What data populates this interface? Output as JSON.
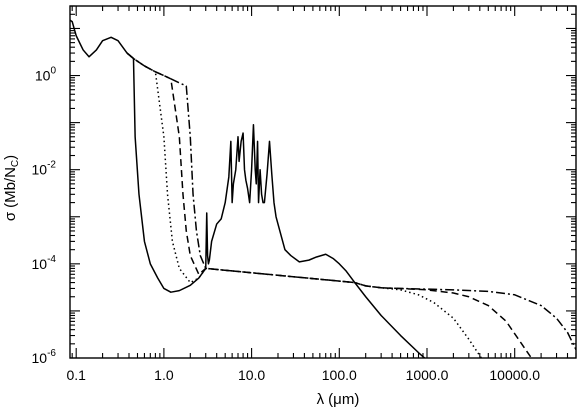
{
  "chart_data": {
    "type": "line",
    "xlabel": "λ (μm)",
    "ylabel": "σ (Mb/N_C)",
    "ylabel_parts": {
      "sigma": "σ",
      "open": "(Mb/N",
      "sub": "C",
      "close": ")"
    },
    "xlabel_parts": {
      "lambda": "λ",
      "open": "(",
      "mu": "μ",
      "unit": "m)"
    },
    "xscale": "log",
    "yscale": "log",
    "xlim": [
      0.085,
      50000
    ],
    "ylim": [
      1e-06,
      30
    ],
    "grid": false,
    "legend": "none",
    "x_tick_labels": [
      {
        "value": 0.1,
        "label": "0.1"
      },
      {
        "value": 1,
        "label": "1.0"
      },
      {
        "value": 10,
        "label": "10.0"
      },
      {
        "value": 100,
        "label": "100.0"
      },
      {
        "value": 1000,
        "label": "1000.0"
      },
      {
        "value": 10000,
        "label": "10000.0"
      }
    ],
    "y_tick_labels": [
      {
        "value": 1,
        "base": "10",
        "exp": "0"
      },
      {
        "value": 0.01,
        "base": "10",
        "exp": "-2"
      },
      {
        "value": 0.0001,
        "base": "10",
        "exp": "-4"
      },
      {
        "value": 1e-06,
        "base": "10",
        "exp": "-6"
      }
    ],
    "common_curve": {
      "x": [
        0.085,
        0.09,
        0.1,
        0.12,
        0.14,
        0.17,
        0.2,
        0.25,
        0.3,
        0.38
      ],
      "y": [
        15,
        14,
        7,
        3.5,
        2.5,
        3.5,
        5.5,
        6.5,
        5.5,
        3
      ]
    },
    "shared_bump": {
      "x": [
        0.38,
        0.45,
        0.6,
        0.8,
        1.0,
        1.2,
        1.5,
        1.8,
        2.0
      ],
      "y": [
        3,
        2.3,
        1.6,
        1.2,
        1.0,
        0.85,
        0.7,
        0.6,
        0.55
      ]
    },
    "series": [
      {
        "style": "solid",
        "cutoff_x": 0.45,
        "x": [
          0.47,
          0.52,
          0.6,
          0.7,
          0.85,
          1.0,
          1.2,
          1.5,
          2.0,
          2.5,
          3.0,
          3.08,
          3.15,
          3.22,
          3.3,
          3.5,
          4.0,
          4.5,
          5.0,
          5.5,
          5.8,
          6.0,
          6.2,
          6.6,
          7.0,
          7.2,
          7.6,
          8.0,
          8.3,
          8.6,
          9.0,
          9.5,
          10.0,
          10.5,
          11.0,
          11.3,
          11.7,
          12.0,
          12.5,
          13.0,
          13.5,
          14.0,
          15.0,
          16.0,
          17.0,
          18.0,
          19.0,
          21.0,
          24.0,
          28.0,
          35.0,
          45.0,
          55.0,
          70.0,
          85.0,
          100.0,
          120.0,
          150.0,
          200.0,
          300.0,
          500.0,
          800.0,
          1000.0,
          2000.0
        ],
        "y": [
          0.05,
          0.003,
          0.0003,
          0.0001,
          5e-05,
          3e-05,
          2.5e-05,
          2.7e-05,
          3.5e-05,
          5e-05,
          8e-05,
          0.0012,
          0.00015,
          0.0001,
          0.00012,
          0.0003,
          0.0007,
          0.0009,
          0.002,
          0.007,
          0.04,
          0.002,
          0.005,
          0.01,
          0.05,
          0.015,
          0.04,
          0.06,
          0.01,
          0.006,
          0.004,
          0.002,
          0.01,
          0.09,
          0.01,
          0.005,
          0.04,
          0.002,
          0.01,
          0.003,
          0.002,
          0.002,
          0.008,
          0.04,
          0.008,
          0.002,
          0.001,
          0.0005,
          0.0002,
          0.00015,
          0.00011,
          0.00012,
          0.00014,
          0.00016,
          0.00013,
          0.0001,
          7e-05,
          4e-05,
          2e-05,
          8e-06,
          3e-06,
          1.3e-06,
          9e-07,
          2e-07
        ]
      },
      {
        "style": "dotted",
        "cutoff_x": 0.95,
        "x": [
          1.0,
          1.1,
          1.25,
          1.5,
          2.0,
          2.5,
          3.0,
          150,
          200,
          300,
          500,
          800,
          1200,
          2000,
          3000,
          5000
        ],
        "y": [
          0.05,
          0.003,
          0.0003,
          8e-05,
          4e-05,
          5e-05,
          8e-05,
          4e-05,
          3.4e-05,
          3.1e-05,
          2.8e-05,
          2.2e-05,
          1.5e-05,
          7e-06,
          2.5e-06,
          6e-07
        ]
      },
      {
        "style": "dashed",
        "cutoff_x": 1.45,
        "x": [
          1.5,
          1.65,
          1.8,
          2.0,
          2.5,
          3.0,
          150,
          200,
          300,
          500,
          1000,
          2000,
          3000,
          5000,
          8000,
          12000,
          20000
        ],
        "y": [
          0.05,
          0.003,
          0.0005,
          0.00015,
          6e-05,
          8e-05,
          4e-05,
          3.4e-05,
          3.1e-05,
          3e-05,
          2.8e-05,
          2.4e-05,
          2e-05,
          1.3e-05,
          6e-06,
          2e-06,
          5e-07
        ]
      },
      {
        "style": "dashdot",
        "cutoff_x": 1.95,
        "x": [
          2.0,
          2.15,
          2.35,
          2.6,
          3.0,
          150,
          200,
          300,
          500,
          1000,
          2000,
          5000,
          10000,
          20000,
          30000,
          40000,
          50000
        ],
        "y": [
          0.05,
          0.003,
          0.0005,
          0.00015,
          8e-05,
          4e-05,
          3.4e-05,
          3.1e-05,
          3e-05,
          2.9e-05,
          2.8e-05,
          2.6e-05,
          2.2e-05,
          1.3e-05,
          7e-06,
          3.5e-06,
          1.5e-06
        ]
      }
    ]
  }
}
